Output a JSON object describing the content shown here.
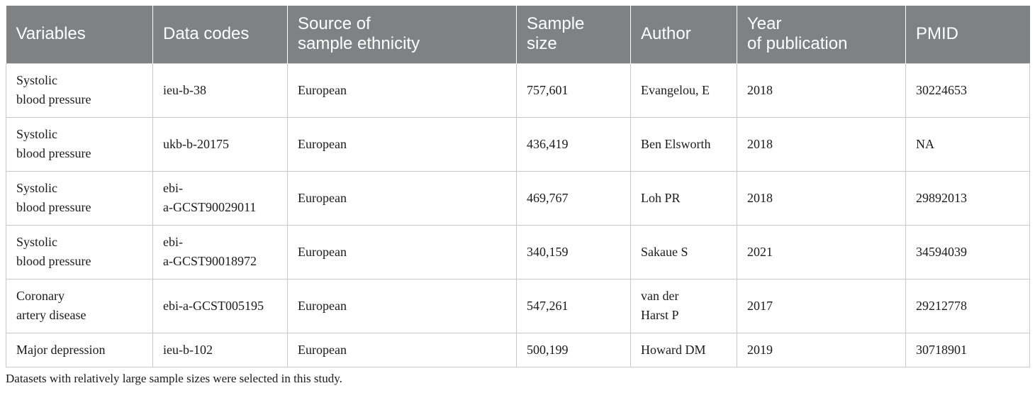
{
  "table": {
    "headers": [
      "Variables",
      "Data codes",
      "Source of\nsample ethnicity",
      "Sample\nsize",
      "Author",
      "Year\nof publication",
      "PMID"
    ],
    "rows": [
      [
        "Systolic\nblood pressure",
        "ieu-b-38",
        "European",
        "757,601",
        "Evangelou, E",
        "2018",
        "30224653"
      ],
      [
        "Systolic\nblood pressure",
        "ukb-b-20175",
        "European",
        "436,419",
        "Ben Elsworth",
        "2018",
        "NA"
      ],
      [
        "Systolic\nblood pressure",
        "ebi-\na-GCST90029011",
        "European",
        "469,767",
        "Loh PR",
        "2018",
        "29892013"
      ],
      [
        "Systolic\nblood pressure",
        "ebi-\na-GCST90018972",
        "European",
        "340,159",
        "Sakaue S",
        "2021",
        "34594039"
      ],
      [
        "Coronary\nartery disease",
        "ebi-a-GCST005195",
        "European",
        "547,261",
        "van der\nHarst P",
        "2017",
        "29212778"
      ],
      [
        "Major depression",
        "ieu-b-102",
        "European",
        "500,199",
        "Howard DM",
        "2019",
        "30718901"
      ]
    ]
  },
  "footnote": "Datasets with relatively large sample sizes were selected in this study."
}
